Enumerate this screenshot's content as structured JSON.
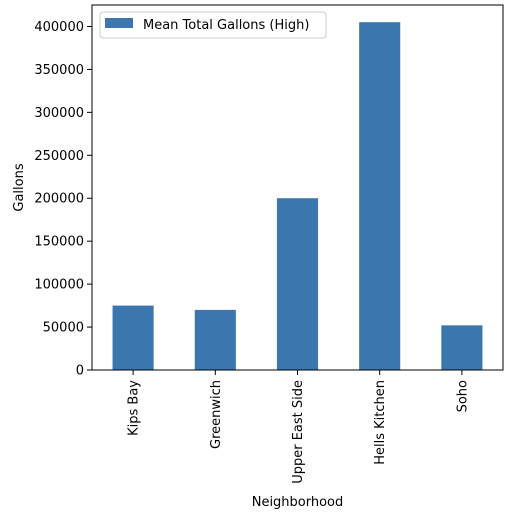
{
  "chart_data": {
    "type": "bar",
    "categories": [
      "Kips Bay",
      "Greenwich",
      "Upper East Side",
      "Hells Kitchen",
      "Soho"
    ],
    "series": [
      {
        "name": "Mean Total Gallons (High)",
        "values": [
          75000,
          70000,
          200000,
          405000,
          52000
        ],
        "color": "#3b76af"
      }
    ],
    "xlabel": "Neighborhood",
    "ylabel": "Gallons",
    "ylim": [
      0,
      425000
    ],
    "yticks": [
      0,
      50000,
      100000,
      150000,
      200000,
      250000,
      300000,
      350000,
      400000
    ],
    "ytick_labels": [
      "0",
      "50000",
      "100000",
      "150000",
      "200000",
      "250000",
      "300000",
      "350000",
      "400000"
    ],
    "grid": false,
    "legend_position": "top-left"
  }
}
